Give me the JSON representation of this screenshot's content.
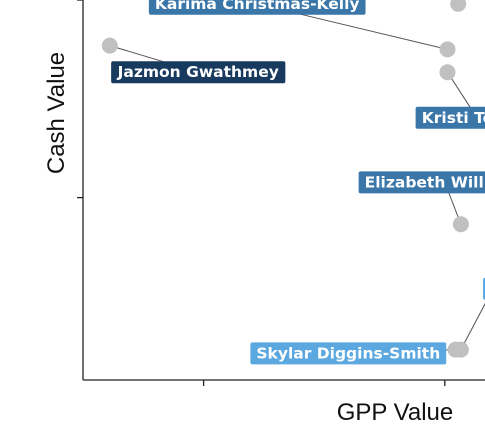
{
  "chart_data": {
    "type": "scatter",
    "title": "",
    "xlabel": "GPP Value",
    "ylabel": "Cash Value",
    "xlim": [
      0,
      15
    ],
    "ylim": [
      0,
      10
    ],
    "xticks": [
      4.5,
      13.5
    ],
    "yticks": [
      4.8,
      10
    ],
    "xtick_labels": [],
    "ytick_labels": [],
    "grid": false,
    "legend": "none",
    "colors": {
      "dark": "#173a5e",
      "mid": "#3a77a8",
      "light": "#5ba8e0",
      "point": "#c0c0c0",
      "axis": "#222222"
    },
    "points": [
      {
        "name": "Jazmon Gwathmey",
        "x": 1.0,
        "y": 8.8,
        "shade": "dark",
        "label_x": 4.3,
        "label_y": 8.1
      },
      {
        "name": "Karima Christmas-Kelly",
        "x": 13.6,
        "y": 8.7,
        "shade": "mid",
        "label_x": 6.5,
        "label_y": 9.9
      },
      {
        "name": "Kristi Toliver",
        "x": 13.6,
        "y": 8.1,
        "shade": "mid",
        "label_x": 14.7,
        "label_y": 6.9
      },
      {
        "name": "",
        "x": 14.0,
        "y": 9.9,
        "shade": "mid",
        "label_x": 15.2,
        "label_y": 11.0
      },
      {
        "name": "Elizabeth Williams",
        "x": 14.1,
        "y": 4.1,
        "shade": "mid",
        "label_x": 13.5,
        "label_y": 5.2
      },
      {
        "name": "",
        "x": 14.1,
        "y": 0.8,
        "shade": "light",
        "label_x": 15.3,
        "label_y": 2.4
      },
      {
        "name": "Skylar Diggins-Smith",
        "x": 13.9,
        "y": 0.8,
        "shade": "light",
        "label_x": 9.9,
        "label_y": 0.7
      }
    ]
  }
}
